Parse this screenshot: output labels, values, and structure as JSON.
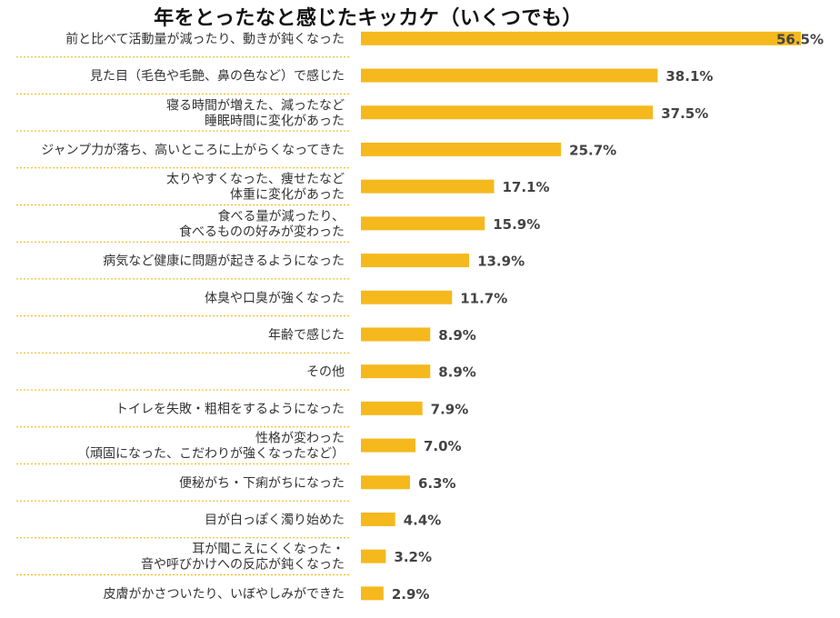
{
  "chart_data": {
    "type": "bar",
    "orientation": "horizontal",
    "title": "年をとったなと感じたキッカケ（いくつでも）",
    "unit": "%",
    "bar_color": "#F5B91E",
    "divider_color": "#F0B400",
    "xlim": [
      0,
      56.5
    ],
    "categories": [
      [
        "前と比べて活動量が減ったり、動きが鈍くなった"
      ],
      [
        "見た目（毛色や毛艶、鼻の色など）で感じた"
      ],
      [
        "寝る時間が増えた、減ったなど",
        "睡眠時間に変化があった"
      ],
      [
        "ジャンプ力が落ち、高いところに上がらくなってきた"
      ],
      [
        "太りやすくなった、痩せたなど",
        "体重に変化があった"
      ],
      [
        "食べる量が減ったり、",
        "食べるものの好みが変わった"
      ],
      [
        "病気など健康に問題が起きるようになった"
      ],
      [
        "体臭や口臭が強くなった"
      ],
      [
        "年齢で感じた"
      ],
      [
        "その他"
      ],
      [
        "トイレを失敗・粗相をするようになった"
      ],
      [
        "性格が変わった",
        "（頑固になった、こだわりが強くなったなど）"
      ],
      [
        "便秘がち・下痢がちになった"
      ],
      [
        "目が白っぽく濁り始めた"
      ],
      [
        "耳が聞こえにくくなった・",
        "音や呼びかけへの反応が鈍くなった"
      ],
      [
        "皮膚がかさついたり、いぼやしみができた"
      ]
    ],
    "values": [
      56.5,
      38.1,
      37.5,
      25.7,
      17.1,
      15.9,
      13.9,
      11.7,
      8.9,
      8.9,
      7.9,
      7.0,
      6.3,
      4.4,
      3.2,
      2.9
    ],
    "value_labels": [
      "56.5%",
      "38.1%",
      "37.5%",
      "25.7%",
      "17.1%",
      "15.9%",
      "13.9%",
      "11.7%",
      "8.9%",
      "8.9%",
      "7.9%",
      "7.0%",
      "6.3%",
      "4.4%",
      "3.2%",
      "2.9%"
    ]
  }
}
